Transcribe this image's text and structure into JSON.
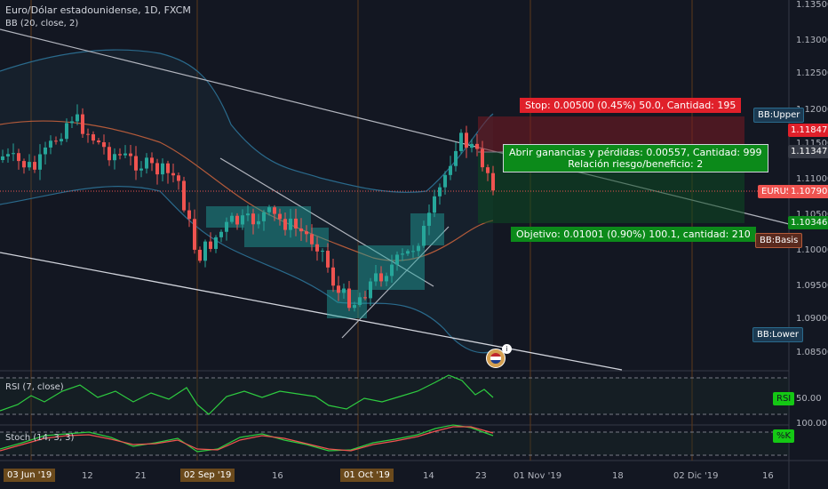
{
  "header": {
    "symbol_title": "Euro/Dólar estadounidense, 1D, FXCM",
    "indicator_bb": "BB (20, close, 2)"
  },
  "panes": {
    "rsi_label": "RSI (7, close)",
    "stoch_label": "Stoch (14, 3, 3)",
    "rsi_level": "50.00",
    "rsi_badge": "RSI",
    "stoch_level": "100.00",
    "stoch_badge": "%K"
  },
  "position_tool": {
    "stop_text": "Stop: 0.00500 (0.45%) 50.0, Cantidad: 195",
    "open_pnl_line1": "Abrir ganancias y pérdidas: 0.00557, Cantidad: 999",
    "open_pnl_line2": "Relación riesgo/beneficio: 2",
    "target_text": "Objetivo: 0.01001 (0.90%) 100.1, cantidad: 210"
  },
  "price_axis": {
    "ticks": [
      "1.13500",
      "1.13000",
      "1.12500",
      "1.12000",
      "1.11500",
      "1.11000",
      "1.10500",
      "1.10000",
      "1.09500",
      "1.09000",
      "1.08500"
    ],
    "badges": {
      "bb_upper": "BB:Upper",
      "stop_price": "1.11847",
      "entry_price": "1.11347",
      "symbol": "EURUSD",
      "last_price": "1.10790",
      "target_price": "1.10346",
      "bb_basis": "BB:Basis",
      "bb_lower": "BB:Lower"
    }
  },
  "date_axis": {
    "labels": [
      {
        "text": "03 Jun '19",
        "hl": true
      },
      {
        "text": "12",
        "hl": false
      },
      {
        "text": "21",
        "hl": false
      },
      {
        "text": "02 Sep '19",
        "hl": true
      },
      {
        "text": "16",
        "hl": false
      },
      {
        "text": "01 Oct '19",
        "hl": true
      },
      {
        "text": "14",
        "hl": false
      },
      {
        "text": "23",
        "hl": false
      },
      {
        "text": "01 Nov '19",
        "hl": false
      },
      {
        "text": "18",
        "hl": false
      },
      {
        "text": "02 Dic '19",
        "hl": false
      },
      {
        "text": "16",
        "hl": false
      }
    ]
  },
  "colors": {
    "up": "#26a69a",
    "down": "#ef5350",
    "bb": "#2a6a8c",
    "basis": "#b35a3a",
    "stop_red": "#e0202a",
    "target_green": "#0c8a1a"
  }
}
